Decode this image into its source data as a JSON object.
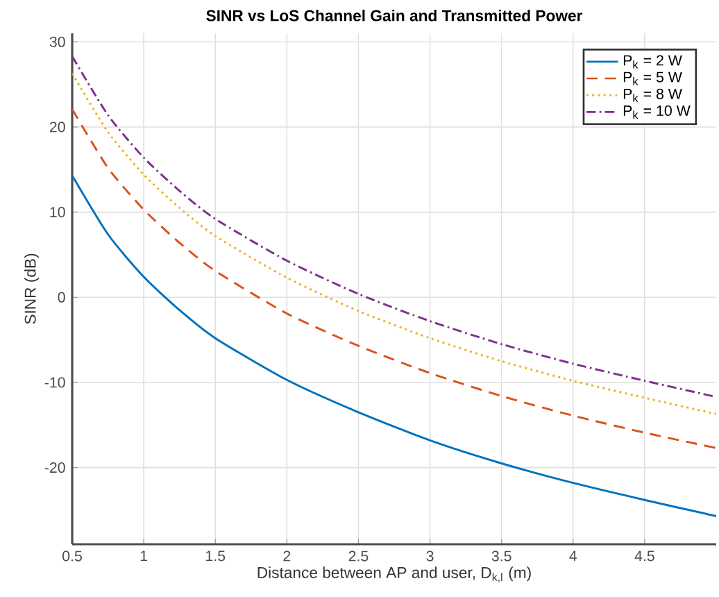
{
  "chart_data": {
    "type": "line",
    "title": "SINR vs LoS Channel Gain and Transmitted Power",
    "xlabel": "Distance between AP and user, D$_{k,l}$ (m)",
    "ylabel": "SINR (dB)",
    "x": [
      0.5,
      0.75,
      1,
      1.25,
      1.5,
      2,
      2.5,
      3,
      3.5,
      4,
      4.5,
      5
    ],
    "series": [
      {
        "name": "P$_{k}$ = 2 W",
        "color": "#0072bd",
        "line_style": "solid",
        "values": [
          14.3,
          7.4,
          2.4,
          -1.5,
          -4.8,
          -9.7,
          -13.5,
          -16.8,
          -19.5,
          -21.8,
          -23.8,
          -25.7
        ]
      },
      {
        "name": "P$_{k}$ = 5 W",
        "color": "#d95319",
        "line_style": "dashed",
        "values": [
          22.1,
          15.2,
          10.3,
          6.4,
          3.1,
          -1.9,
          -5.7,
          -8.9,
          -11.6,
          -13.9,
          -15.9,
          -17.7
        ]
      },
      {
        "name": "P$_{k}$ = 8 W",
        "color": "#edb120",
        "line_style": "dotted",
        "values": [
          26.3,
          19.4,
          14.4,
          10.5,
          7.2,
          2.3,
          -1.6,
          -4.8,
          -7.5,
          -9.8,
          -11.8,
          -13.7
        ]
      },
      {
        "name": "P$_{k}$ = 10 W",
        "color": "#7e2f8e",
        "line_style": "dashdot",
        "values": [
          28.3,
          21.4,
          16.4,
          12.5,
          9.2,
          4.3,
          0.4,
          -2.8,
          -5.5,
          -7.8,
          -9.8,
          -11.7
        ]
      }
    ],
    "xlim": [
      0.5,
      5
    ],
    "ylim": [
      -29,
      31
    ],
    "xticks": [
      0.5,
      1,
      1.5,
      2,
      2.5,
      3,
      3.5,
      4,
      4.5
    ],
    "yticks": [
      -20,
      -10,
      0,
      10,
      20,
      30
    ],
    "grid": true,
    "legend": "top right",
    "marker": "none"
  }
}
